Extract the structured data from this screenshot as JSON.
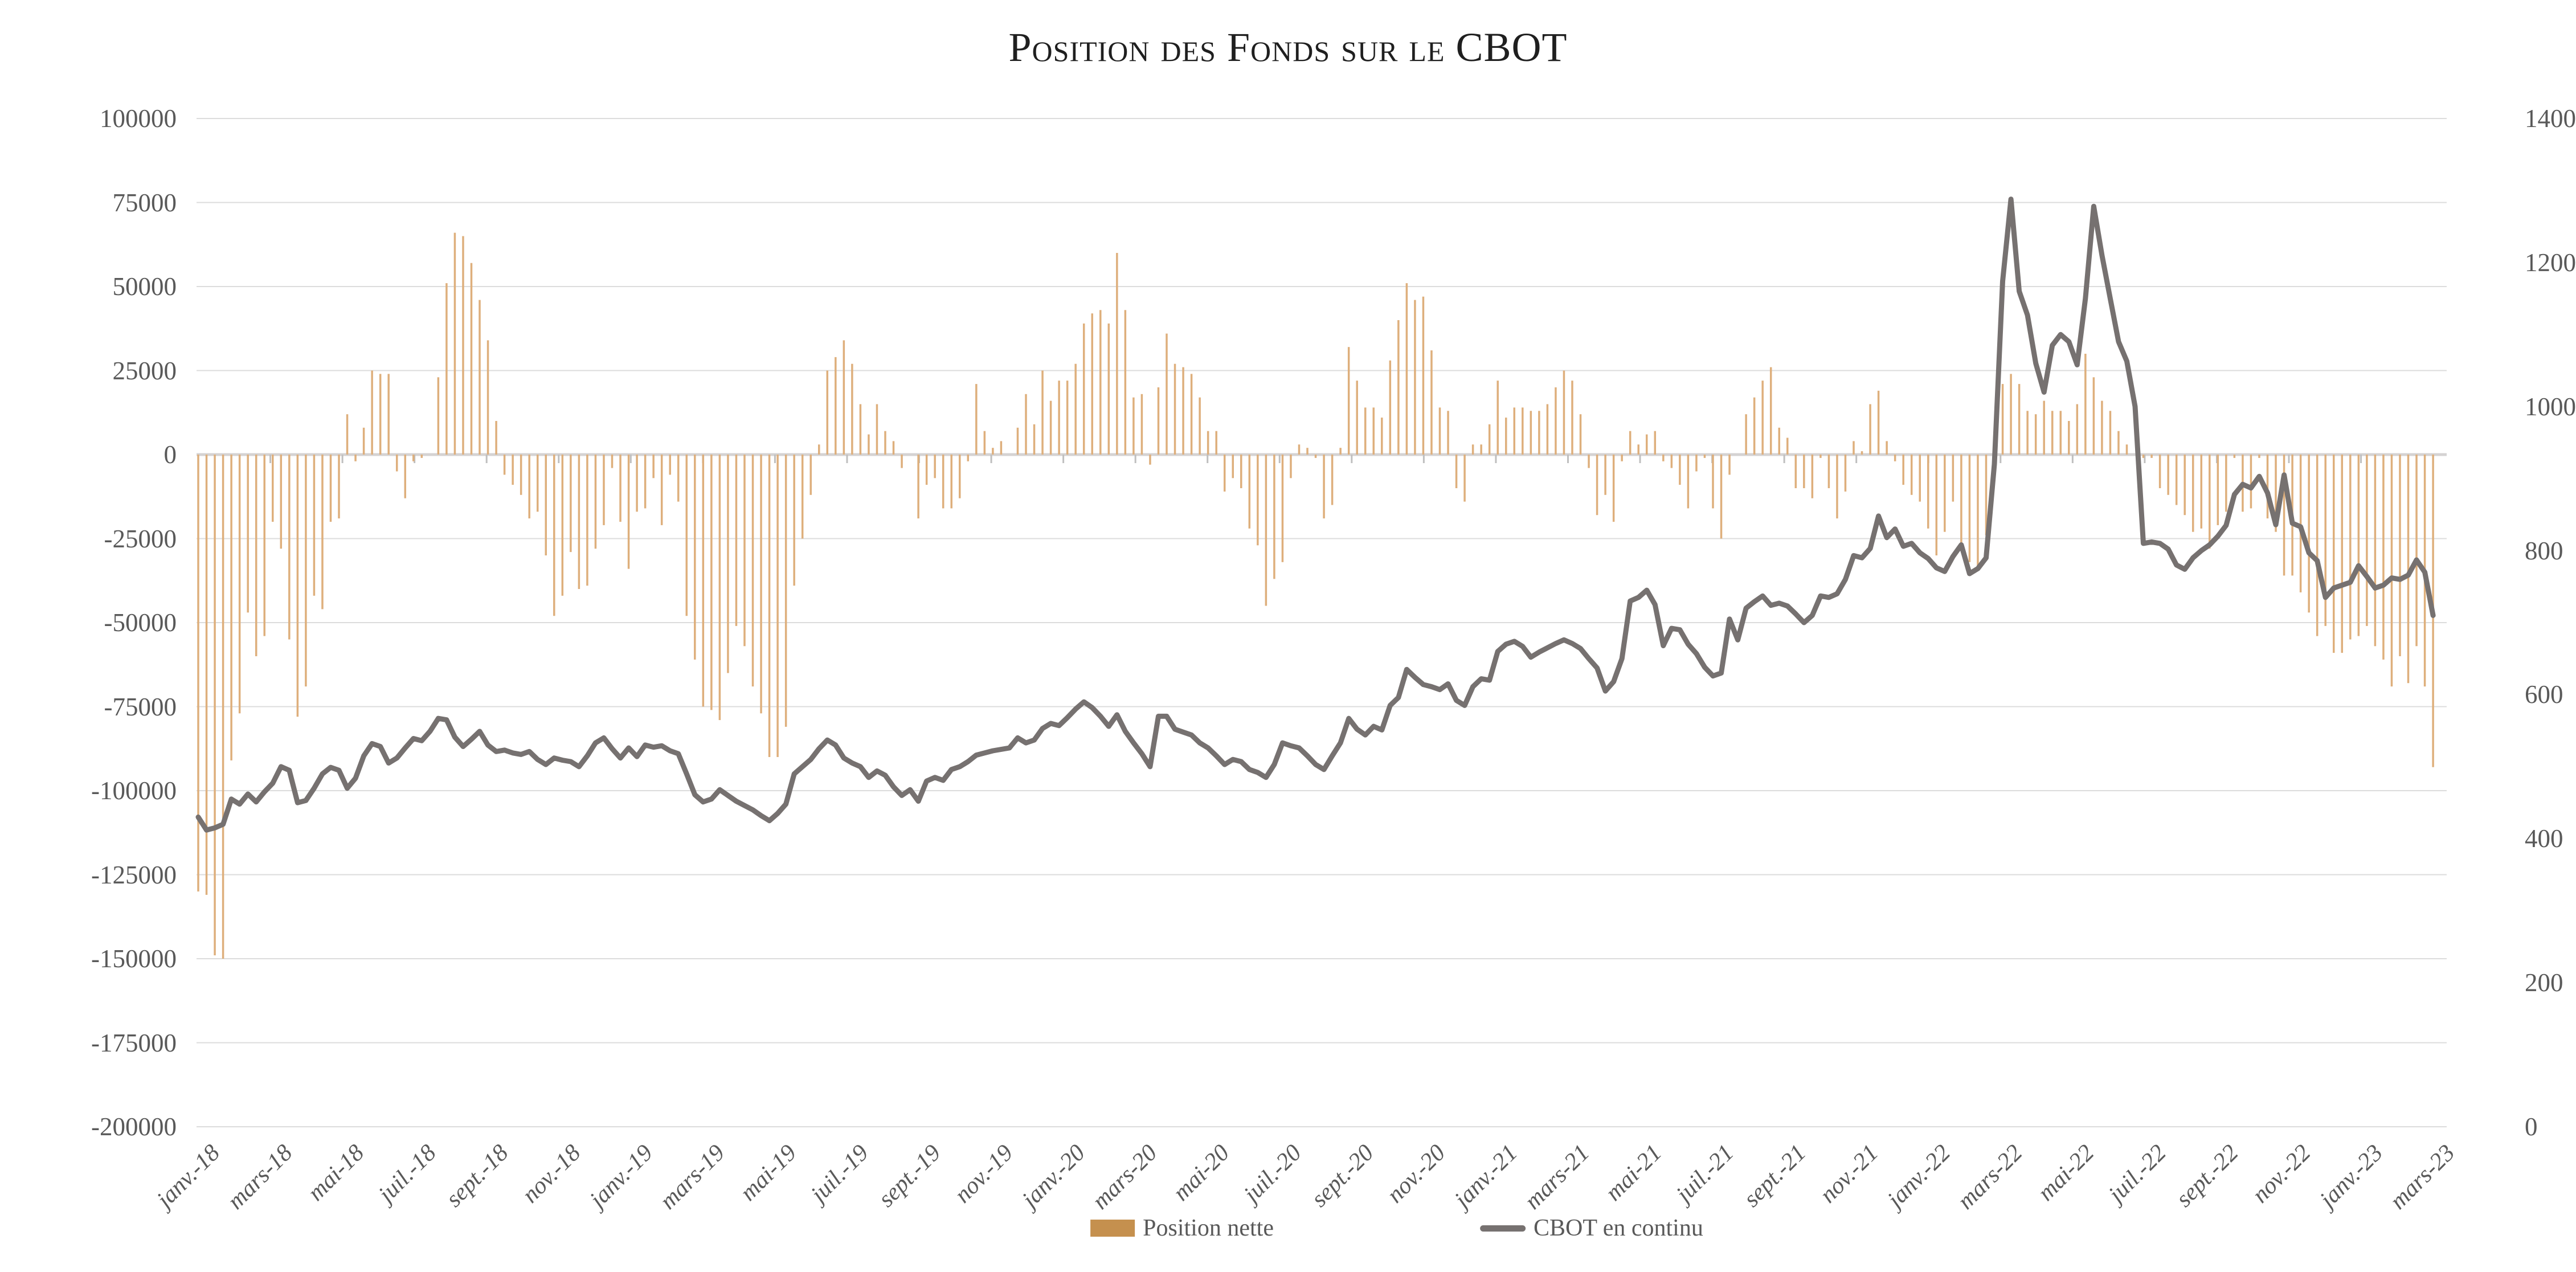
{
  "title": "Position des Fonds sur le CBOT",
  "legend": {
    "bars_label": "Position nette",
    "line_label": "CBOT en continu"
  },
  "colors": {
    "bar_fill": "#DEAF7C",
    "bar_legend": "#C5904E",
    "line": "#767170",
    "grid": "#DCDCDC",
    "zero_axis": "#D5D3D3",
    "axis_tick": "#BFBFBF",
    "axis_text": "#595959",
    "title_text": "#1F1F1F"
  },
  "axes": {
    "left_ticks": [
      100000,
      75000,
      50000,
      25000,
      0,
      -25000,
      -50000,
      -75000,
      -100000,
      -125000,
      -150000,
      -175000,
      -200000
    ],
    "right_ticks": [
      1400,
      1200,
      1000,
      800,
      600,
      400,
      200,
      0
    ],
    "left_range": [
      -200000,
      100000
    ],
    "right_range": [
      0,
      1400
    ],
    "x_labels": [
      "janv.-18",
      "mars-18",
      "mai-18",
      "juil.-18",
      "sept.-18",
      "nov.-18",
      "janv.-19",
      "mars-19",
      "mai-19",
      "juil.-19",
      "sept.-19",
      "nov.-19",
      "janv.-20",
      "mars-20",
      "mai-20",
      "juil.-20",
      "sept.-20",
      "nov.-20",
      "janv.-21",
      "mars-21",
      "mai-21",
      "juil.-21",
      "sept.-21",
      "nov.-21",
      "janv.-22",
      "mars-22",
      "mai-22",
      "juil.-22",
      "sept.-22",
      "nov.-22",
      "janv.-23",
      "mars-23"
    ]
  },
  "chart_data": {
    "type": "bar+line combo, weekly data janv.-18 to mars-23",
    "grid": "horizontal only",
    "legend_position": "bottom center",
    "categories_note": "271 weekly points; x labels every 2 months",
    "series": [
      {
        "name": "Position nette",
        "type": "bar",
        "axis": "left",
        "unit": "contracts",
        "values_thousands": [
          -130,
          -131,
          -149,
          -150,
          -91,
          -77,
          -47,
          -60,
          -54,
          -20,
          -28,
          -55,
          -78,
          -69,
          -42,
          -46,
          -20,
          -19,
          12,
          -2,
          8,
          25,
          24,
          24,
          -5,
          -13,
          -2,
          -1,
          0,
          23,
          51,
          66,
          65,
          57,
          46,
          34,
          10,
          -6,
          -9,
          -12,
          -19,
          -17,
          -30,
          -48,
          -42,
          -29,
          -40,
          -39,
          -28,
          -21,
          -4,
          -20,
          -34,
          -17,
          -16,
          -7,
          -21,
          -6,
          -14,
          -48,
          -61,
          -75,
          -76,
          -79,
          -65,
          -51,
          -57,
          -69,
          -77,
          -90,
          -90,
          -81,
          -39,
          -25,
          -12,
          3,
          25,
          29,
          34,
          27,
          15,
          6,
          15,
          7,
          4,
          -4,
          0,
          -19,
          -9,
          -7,
          -16,
          -16,
          -13,
          -2,
          21,
          7,
          2,
          4,
          0,
          8,
          18,
          9,
          25,
          16,
          22,
          22,
          27,
          39,
          42,
          43,
          39,
          60,
          43,
          17,
          18,
          -3,
          20,
          36,
          27,
          26,
          24,
          17,
          7,
          7,
          -11,
          -7,
          -10,
          -22,
          -27,
          -45,
          -37,
          -32,
          -7,
          3,
          2,
          -1,
          -19,
          -15,
          2,
          32,
          22,
          14,
          14,
          11,
          28,
          40,
          51,
          46,
          47,
          31,
          14,
          13,
          -10,
          -14,
          3,
          3,
          9,
          22,
          11,
          14,
          14,
          13,
          13,
          15,
          20,
          25,
          22,
          12,
          -4,
          -18,
          -12,
          -20,
          -2,
          7,
          3,
          6,
          7,
          -2,
          -4,
          -9,
          -16,
          -5,
          -1,
          -16,
          -25,
          -6,
          0,
          12,
          17,
          22,
          26,
          8,
          5,
          -10,
          -10,
          -13,
          -1,
          -10,
          -19,
          -11,
          4,
          1,
          15,
          19,
          4,
          -2,
          -9,
          -12,
          -14,
          -22,
          -30,
          -23,
          -14,
          -28,
          -32,
          -34,
          -24,
          -8,
          21,
          24,
          21,
          13,
          12,
          16,
          13,
          13,
          10,
          15,
          30,
          23,
          16,
          13,
          7,
          3,
          0,
          -1,
          -1,
          -10,
          -12,
          -15,
          -18,
          -23,
          -22,
          -28,
          -21,
          -17,
          -1,
          -17,
          -16,
          -1,
          -19,
          -23,
          -36,
          -36,
          -41,
          -47,
          -54,
          -51,
          -59,
          -59,
          -55,
          -54,
          -51,
          -57,
          -61,
          -69,
          -60,
          -68,
          -57,
          -69,
          -93
        ]
      },
      {
        "name": "CBOT en continu",
        "type": "line",
        "axis": "right",
        "unit": "cents/bushel",
        "values": [
          430,
          412,
          415,
          420,
          455,
          448,
          462,
          451,
          465,
          477,
          500,
          495,
          450,
          453,
          470,
          490,
          499,
          495,
          470,
          484,
          515,
          532,
          528,
          505,
          512,
          526,
          539,
          536,
          549,
          567,
          565,
          541,
          528,
          538,
          549,
          530,
          521,
          523,
          519,
          517,
          521,
          510,
          503,
          512,
          509,
          507,
          500,
          515,
          533,
          540,
          525,
          512,
          526,
          514,
          530,
          527,
          529,
          522,
          518,
          490,
          461,
          451,
          455,
          468,
          460,
          452,
          446,
          440,
          432,
          425,
          435,
          448,
          490,
          500,
          510,
          525,
          537,
          530,
          512,
          505,
          500,
          485,
          494,
          488,
          472,
          460,
          468,
          452,
          480,
          485,
          481,
          496,
          500,
          507,
          516,
          519,
          522,
          524,
          526,
          540,
          533,
          537,
          553,
          560,
          557,
          568,
          580,
          590,
          582,
          570,
          556,
          572,
          549,
          533,
          518,
          500,
          570,
          570,
          552,
          548,
          544,
          533,
          526,
          515,
          503,
          510,
          507,
          496,
          492,
          485,
          503,
          533,
          529,
          526,
          515,
          503,
          496,
          515,
          533,
          567,
          552,
          544,
          556,
          551,
          585,
          596,
          635,
          624,
          614,
          611,
          607,
          615,
          592,
          585,
          611,
          622,
          620,
          660,
          670,
          674,
          667,
          652,
          659,
          665,
          671,
          676,
          671,
          664,
          650,
          637,
          605,
          618,
          650,
          730,
          735,
          745,
          725,
          668,
          692,
          690,
          670,
          657,
          638,
          626,
          630,
          705,
          676,
          720,
          729,
          737,
          724,
          727,
          723,
          712,
          700,
          710,
          737,
          735,
          740,
          760,
          793,
          790,
          803,
          848,
          818,
          830,
          806,
          810,
          797,
          789,
          776,
          771,
          792,
          808,
          768,
          775,
          790,
          920,
          1174,
          1288,
          1160,
          1127,
          1060,
          1020,
          1085,
          1100,
          1090,
          1058,
          1150,
          1278,
          1210,
          1150,
          1090,
          1063,
          1000,
          810,
          812,
          810,
          802,
          780,
          774,
          790,
          800,
          808,
          820,
          835,
          878,
          892,
          887,
          903,
          880,
          836,
          905,
          838,
          833,
          797,
          786,
          735,
          748,
          752,
          756,
          779,
          764,
          748,
          752,
          762,
          760,
          766,
          787,
          770,
          710
        ]
      }
    ]
  }
}
